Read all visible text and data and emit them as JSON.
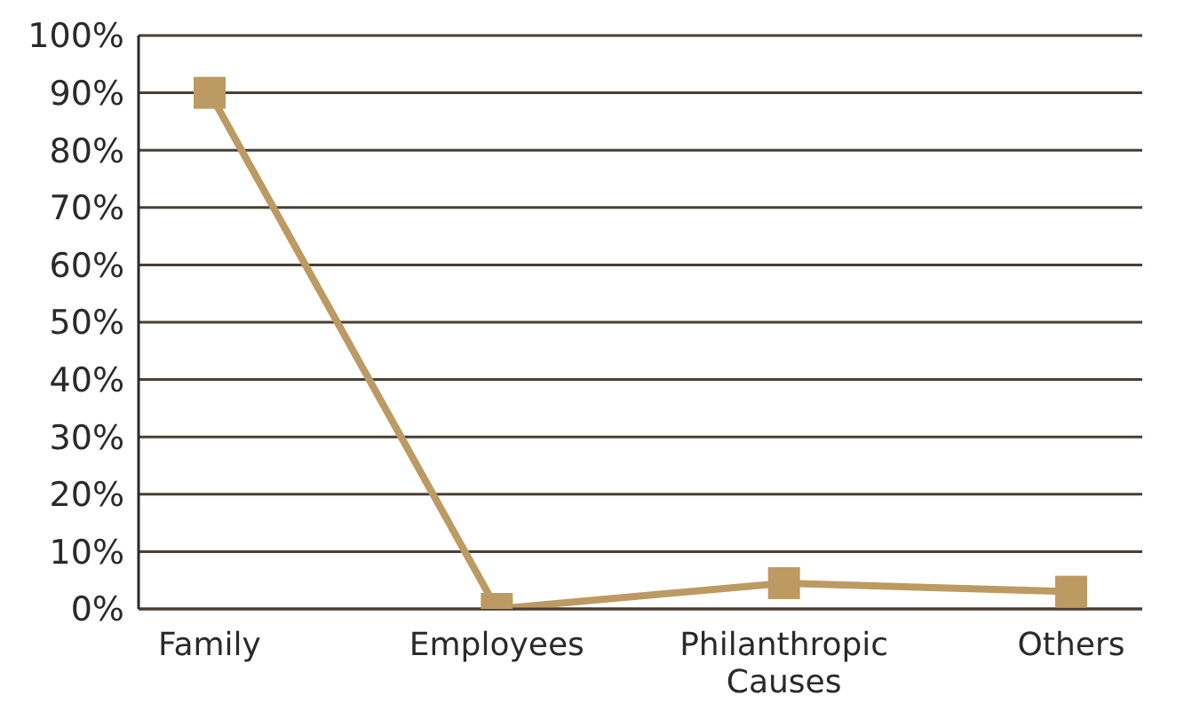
{
  "chart_data": {
    "type": "line",
    "categories": [
      "Family",
      "Employees",
      "Philanthropic Causes",
      "Others"
    ],
    "series": [
      {
        "color": "#bd9a62",
        "values": [
          90,
          0,
          4.5,
          3
        ]
      }
    ],
    "ylim": [
      0,
      100
    ],
    "yticks": [
      {
        "value": 0,
        "label": "0%"
      },
      {
        "value": 10,
        "label": "10%"
      },
      {
        "value": 20,
        "label": "20%"
      },
      {
        "value": 30,
        "label": "30%"
      },
      {
        "value": 40,
        "label": "40%"
      },
      {
        "value": 50,
        "label": "50%"
      },
      {
        "value": 60,
        "label": "60%"
      },
      {
        "value": 70,
        "label": "70%"
      },
      {
        "value": 80,
        "label": "80%"
      },
      {
        "value": 90,
        "label": "90%"
      },
      {
        "value": 100,
        "label": "100%"
      }
    ],
    "grid": "y",
    "marker": "square",
    "line_style": "solid",
    "legend": false
  }
}
